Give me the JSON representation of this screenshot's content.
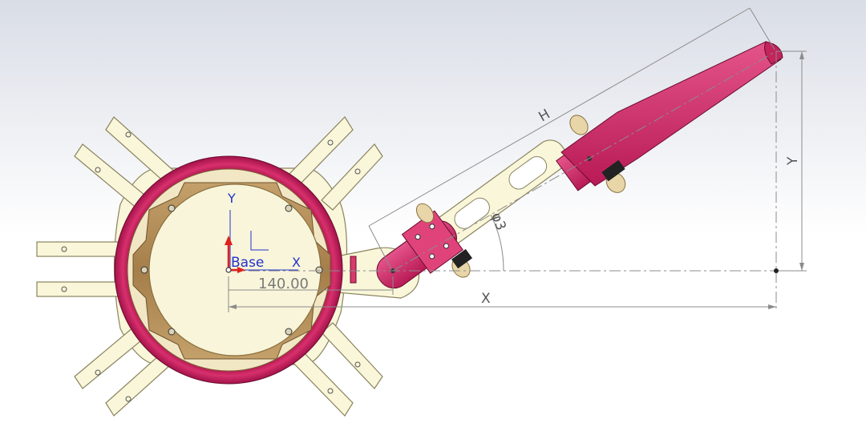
{
  "viewport": {
    "background_top": "#d9dde6",
    "background_bottom": "#ffffff"
  },
  "colors": {
    "plate": "#f9f6d9",
    "plate_stroke": "#8a8460",
    "ring": "#c8195a",
    "bracket": "#a57e4a",
    "arm": "#d63a6b",
    "bushing": "#e8d6a8",
    "dim_line": "#8c8c8c",
    "axis_y": "#e0201a",
    "axis_label": "#2233cc"
  },
  "origin": {
    "label": "Base",
    "x_axis_label": "X",
    "y_axis_label": "Y"
  },
  "dimensions": {
    "h_label": "H",
    "x_label": "X",
    "y_label": "Y",
    "angle_label": "φ3",
    "offset_value": "140.00"
  }
}
